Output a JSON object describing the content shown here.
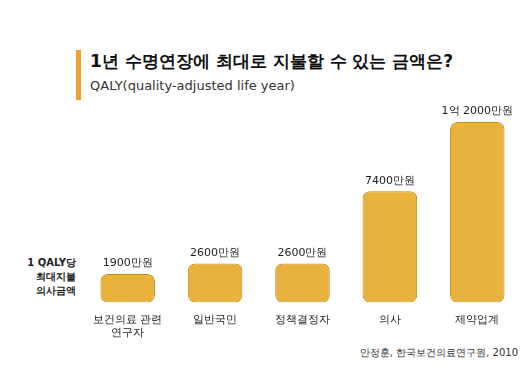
{
  "chart_data": {
    "type": "bar",
    "title": "1년 수명연장에 최대로 지불할 수 있는 금액은?",
    "subtitle": "QALY(quality-adjusted life year)",
    "y_label": "1 QALY당\n최대지불\n의사금액",
    "source": "안정훈, 한국보건의료연구원, 2010",
    "categories": [
      "보건의료 관련\n연구자",
      "일반국민",
      "정책결정자",
      "의사",
      "제약업계"
    ],
    "values": [
      1900,
      2600,
      2600,
      7400,
      12000
    ],
    "value_labels": [
      "1900만원",
      "2600만원",
      "2600만원",
      "7400만원",
      "1억 2000만원"
    ],
    "color": "#e9b23c",
    "data_labels": true,
    "tick_labels": "x",
    "grid": false
  }
}
